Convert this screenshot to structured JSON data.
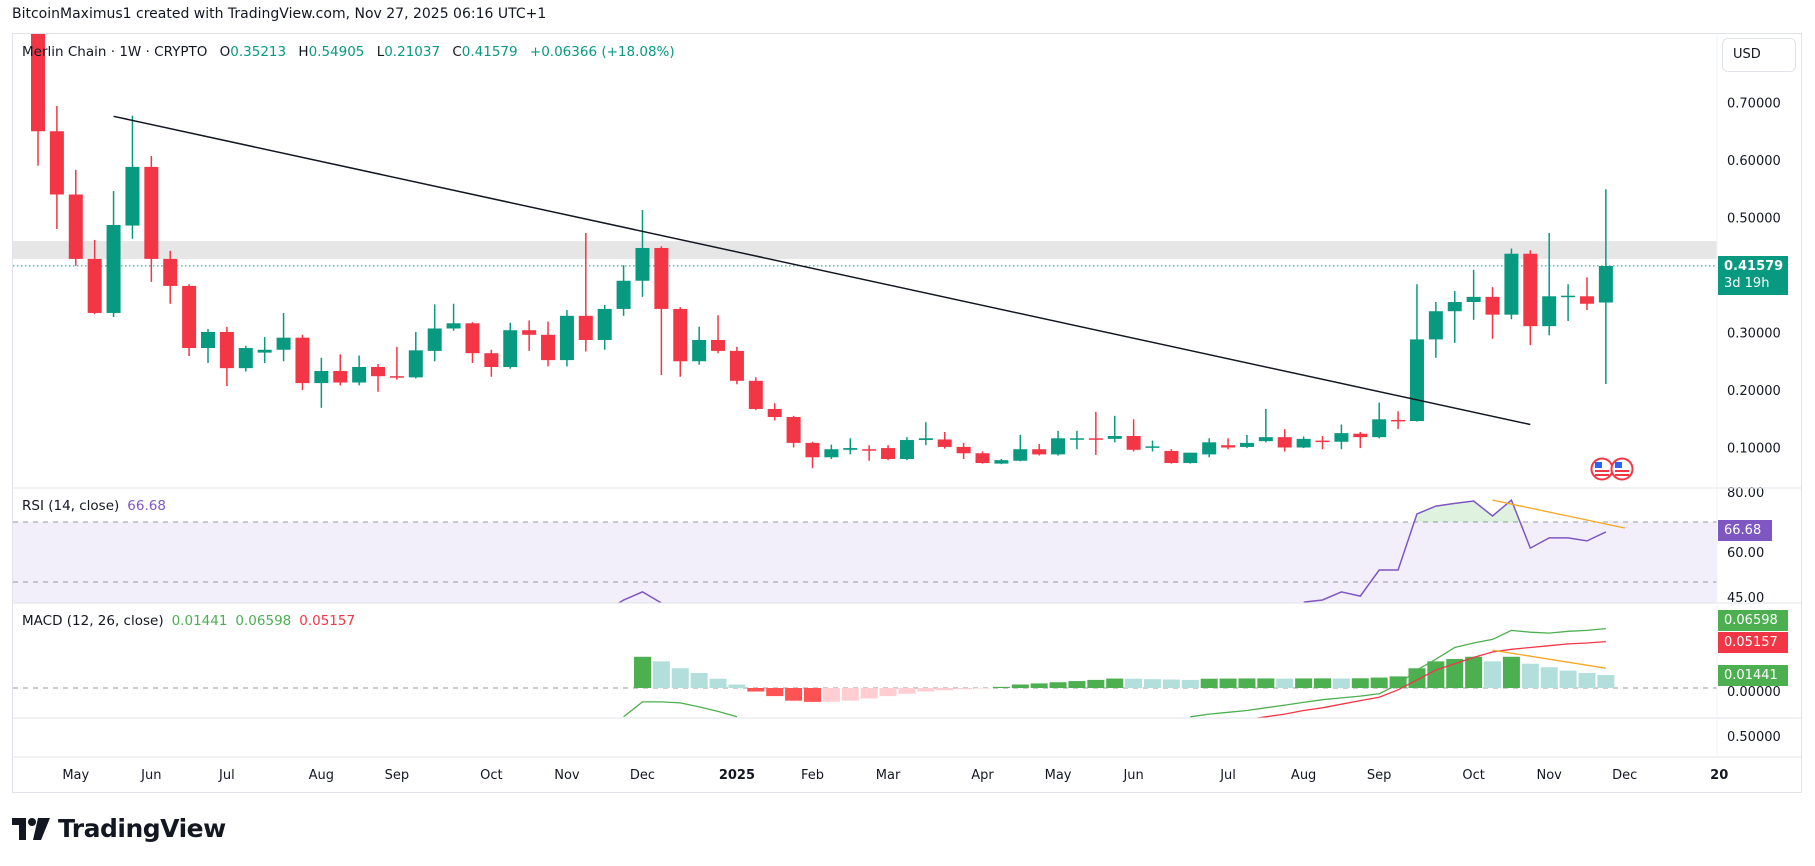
{
  "credit": "BitcoinMaximus1 created with TradingView.com, Nov 27, 2025 06:16 UTC+1",
  "symbol": {
    "name": "Merlin Chain",
    "interval": "1W",
    "exchange": "CRYPTO",
    "separator": "·"
  },
  "ohlc": {
    "o_label": "O",
    "o": "0.35213",
    "h_label": "H",
    "h": "0.54905",
    "l_label": "L",
    "l": "0.21037",
    "c_label": "C",
    "c": "0.41579",
    "change": "+0.06366 (+18.08%)"
  },
  "currency": "USD",
  "last_price": {
    "value": "0.41579",
    "countdown": "3d 19h"
  },
  "rsi": {
    "title": "RSI (14, close)",
    "value": "66.68"
  },
  "macd": {
    "title": "MACD (12, 26, close)",
    "hist": "0.01441",
    "macd": "0.06598",
    "signal": "0.05157"
  },
  "lower_pane_label": "0.50000",
  "brand": "TradingView",
  "colors": {
    "up": "#089981",
    "down": "#f23645",
    "rsi": "#7e57c2",
    "macd_line": "#4caf50",
    "signal_line": "#f23645",
    "hist_up_strong": "#4caf50",
    "hist_up_weak": "#b2dfdb",
    "hist_down_strong": "#ff5252",
    "hist_down_weak": "#ffcdd2",
    "trendline": "#131722",
    "divergence": "#f5a623",
    "resistance_zone": "#e6e6e6"
  },
  "chart_data": {
    "type": "candlestick",
    "price_axis": {
      "ticks": [
        "0.70000",
        "0.60000",
        "0.50000",
        "0.30000",
        "0.20000",
        "0.10000"
      ],
      "values": [
        0.7,
        0.6,
        0.5,
        0.3,
        0.2,
        0.1
      ]
    },
    "resistance_zone": [
      0.428,
      0.459
    ],
    "trendline": {
      "from": [
        "2024-05-20",
        0.676
      ],
      "to": [
        "2025-10-27",
        0.14
      ]
    },
    "x_ticks": [
      {
        "label": "May",
        "month": "2024-05"
      },
      {
        "label": "Jun",
        "month": "2024-06"
      },
      {
        "label": "Jul",
        "month": "2024-07"
      },
      {
        "label": "Aug",
        "month": "2024-08"
      },
      {
        "label": "Sep",
        "month": "2024-09"
      },
      {
        "label": "Oct",
        "month": "2024-10"
      },
      {
        "label": "Nov",
        "month": "2024-11"
      },
      {
        "label": "Dec",
        "month": "2024-12"
      },
      {
        "label": "2025",
        "month": "2025-01",
        "bold": true
      },
      {
        "label": "Feb",
        "month": "2025-02"
      },
      {
        "label": "Mar",
        "month": "2025-03"
      },
      {
        "label": "Apr",
        "month": "2025-04"
      },
      {
        "label": "May",
        "month": "2025-05"
      },
      {
        "label": "Jun",
        "month": "2025-06"
      },
      {
        "label": "Jul",
        "month": "2025-07"
      },
      {
        "label": "Aug",
        "month": "2025-08"
      },
      {
        "label": "Sep",
        "month": "2025-09"
      },
      {
        "label": "Oct",
        "month": "2025-10"
      },
      {
        "label": "Nov",
        "month": "2025-11"
      },
      {
        "label": "Dec",
        "month": "2025-12"
      },
      {
        "label": "20",
        "month": "2026-01",
        "bold": true
      }
    ],
    "candles_columns": [
      "date",
      "open",
      "high",
      "low",
      "close"
    ],
    "candles": [
      [
        "2024-04-22",
        0.84,
        0.86,
        0.59,
        0.65
      ],
      [
        "2024-04-29",
        0.65,
        0.694,
        0.48,
        0.54
      ],
      [
        "2024-05-06",
        0.54,
        0.583,
        0.416,
        0.428
      ],
      [
        "2024-05-13",
        0.428,
        0.461,
        0.332,
        0.334
      ],
      [
        "2024-05-20",
        0.334,
        0.546,
        0.327,
        0.487
      ],
      [
        "2024-05-27",
        0.486,
        0.677,
        0.463,
        0.588
      ],
      [
        "2024-06-03",
        0.588,
        0.607,
        0.388,
        0.428
      ],
      [
        "2024-06-10",
        0.428,
        0.442,
        0.35,
        0.381
      ],
      [
        "2024-06-17",
        0.381,
        0.384,
        0.259,
        0.273
      ],
      [
        "2024-06-24",
        0.273,
        0.306,
        0.247,
        0.301
      ],
      [
        "2024-07-01",
        0.301,
        0.31,
        0.207,
        0.238
      ],
      [
        "2024-07-08",
        0.238,
        0.277,
        0.232,
        0.273
      ],
      [
        "2024-07-15",
        0.265,
        0.292,
        0.247,
        0.27
      ],
      [
        "2024-07-22",
        0.27,
        0.334,
        0.25,
        0.291
      ],
      [
        "2024-07-29",
        0.291,
        0.296,
        0.2,
        0.212
      ],
      [
        "2024-08-05",
        0.212,
        0.256,
        0.169,
        0.233
      ],
      [
        "2024-08-12",
        0.233,
        0.262,
        0.208,
        0.213
      ],
      [
        "2024-08-19",
        0.213,
        0.26,
        0.208,
        0.24
      ],
      [
        "2024-08-26",
        0.24,
        0.245,
        0.197,
        0.224
      ],
      [
        "2024-09-02",
        0.224,
        0.275,
        0.218,
        0.222
      ],
      [
        "2024-09-09",
        0.222,
        0.301,
        0.22,
        0.269
      ],
      [
        "2024-09-16",
        0.268,
        0.349,
        0.25,
        0.307
      ],
      [
        "2024-09-23",
        0.307,
        0.35,
        0.303,
        0.316
      ],
      [
        "2024-09-30",
        0.316,
        0.318,
        0.247,
        0.264
      ],
      [
        "2024-10-07",
        0.264,
        0.27,
        0.223,
        0.24
      ],
      [
        "2024-10-14",
        0.24,
        0.317,
        0.237,
        0.304
      ],
      [
        "2024-10-21",
        0.304,
        0.321,
        0.268,
        0.296
      ],
      [
        "2024-10-28",
        0.296,
        0.319,
        0.241,
        0.252
      ],
      [
        "2024-11-04",
        0.252,
        0.339,
        0.241,
        0.329
      ],
      [
        "2024-11-11",
        0.329,
        0.473,
        0.267,
        0.287
      ],
      [
        "2024-11-18",
        0.287,
        0.348,
        0.27,
        0.341
      ],
      [
        "2024-11-25",
        0.341,
        0.417,
        0.329,
        0.39
      ],
      [
        "2024-12-02",
        0.39,
        0.513,
        0.362,
        0.447
      ],
      [
        "2024-12-09",
        0.447,
        0.45,
        0.226,
        0.341
      ],
      [
        "2024-12-16",
        0.341,
        0.344,
        0.223,
        0.25
      ],
      [
        "2024-12-23",
        0.25,
        0.31,
        0.244,
        0.287
      ],
      [
        "2024-12-30",
        0.287,
        0.33,
        0.264,
        0.268
      ],
      [
        "2025-01-06",
        0.268,
        0.275,
        0.21,
        0.216
      ],
      [
        "2025-01-13",
        0.216,
        0.222,
        0.165,
        0.167
      ],
      [
        "2025-01-20",
        0.167,
        0.177,
        0.147,
        0.153
      ],
      [
        "2025-01-27",
        0.153,
        0.155,
        0.1,
        0.108
      ],
      [
        "2025-02-03",
        0.108,
        0.11,
        0.064,
        0.083
      ],
      [
        "2025-02-10",
        0.083,
        0.105,
        0.08,
        0.097
      ],
      [
        "2025-02-17",
        0.096,
        0.116,
        0.088,
        0.099
      ],
      [
        "2025-02-24",
        0.097,
        0.104,
        0.077,
        0.095
      ],
      [
        "2025-03-03",
        0.099,
        0.104,
        0.078,
        0.08
      ],
      [
        "2025-03-10",
        0.08,
        0.118,
        0.078,
        0.113
      ],
      [
        "2025-03-17",
        0.113,
        0.144,
        0.104,
        0.116
      ],
      [
        "2025-03-24",
        0.114,
        0.127,
        0.098,
        0.101
      ],
      [
        "2025-03-31",
        0.101,
        0.108,
        0.08,
        0.09
      ],
      [
        "2025-04-07",
        0.09,
        0.093,
        0.072,
        0.073
      ],
      [
        "2025-04-14",
        0.072,
        0.08,
        0.071,
        0.078
      ],
      [
        "2025-04-21",
        0.077,
        0.122,
        0.076,
        0.097
      ],
      [
        "2025-04-28",
        0.097,
        0.106,
        0.086,
        0.088
      ],
      [
        "2025-05-05",
        0.088,
        0.129,
        0.086,
        0.116
      ],
      [
        "2025-05-12",
        0.114,
        0.129,
        0.097,
        0.116
      ],
      [
        "2025-05-19",
        0.116,
        0.162,
        0.087,
        0.115
      ],
      [
        "2025-05-26",
        0.115,
        0.155,
        0.109,
        0.12
      ],
      [
        "2025-06-02",
        0.12,
        0.149,
        0.093,
        0.096
      ],
      [
        "2025-06-09",
        0.1,
        0.112,
        0.093,
        0.102
      ],
      [
        "2025-06-16",
        0.094,
        0.097,
        0.072,
        0.073
      ],
      [
        "2025-06-23",
        0.073,
        0.091,
        0.072,
        0.091
      ],
      [
        "2025-06-30",
        0.088,
        0.116,
        0.083,
        0.109
      ],
      [
        "2025-07-07",
        0.104,
        0.116,
        0.097,
        0.1
      ],
      [
        "2025-07-14",
        0.101,
        0.122,
        0.099,
        0.108
      ],
      [
        "2025-07-21",
        0.111,
        0.167,
        0.109,
        0.118
      ],
      [
        "2025-07-28",
        0.118,
        0.132,
        0.093,
        0.1
      ],
      [
        "2025-08-04",
        0.1,
        0.119,
        0.099,
        0.115
      ],
      [
        "2025-08-11",
        0.112,
        0.12,
        0.097,
        0.11
      ],
      [
        "2025-08-18",
        0.11,
        0.14,
        0.097,
        0.125
      ],
      [
        "2025-08-25",
        0.124,
        0.127,
        0.099,
        0.118
      ],
      [
        "2025-09-01",
        0.118,
        0.178,
        0.116,
        0.149
      ],
      [
        "2025-09-08",
        0.148,
        0.163,
        0.132,
        0.146
      ],
      [
        "2025-09-15",
        0.146,
        0.384,
        0.145,
        0.288
      ],
      [
        "2025-09-22",
        0.288,
        0.353,
        0.256,
        0.337
      ],
      [
        "2025-09-29",
        0.337,
        0.372,
        0.282,
        0.353
      ],
      [
        "2025-10-06",
        0.353,
        0.409,
        0.322,
        0.362
      ],
      [
        "2025-10-13",
        0.362,
        0.379,
        0.289,
        0.331
      ],
      [
        "2025-10-20",
        0.331,
        0.446,
        0.323,
        0.437
      ],
      [
        "2025-10-27",
        0.437,
        0.443,
        0.278,
        0.311
      ],
      [
        "2025-11-03",
        0.311,
        0.473,
        0.295,
        0.363
      ],
      [
        "2025-11-10",
        0.362,
        0.384,
        0.32,
        0.364
      ],
      [
        "2025-11-17",
        0.363,
        0.396,
        0.339,
        0.35
      ],
      [
        "2025-11-24",
        0.35213,
        0.54905,
        0.21037,
        0.41579
      ]
    ],
    "rsi_axis": {
      "ticks": [
        "80.00",
        "60.00",
        "45.00"
      ],
      "values": [
        80,
        60,
        45
      ],
      "bands": [
        70,
        50
      ]
    },
    "rsi_values": [
      null,
      null,
      null,
      null,
      null,
      null,
      null,
      null,
      null,
      null,
      null,
      null,
      null,
      null,
      null,
      null,
      null,
      null,
      null,
      null,
      null,
      null,
      null,
      null,
      null,
      null,
      null,
      null,
      null,
      null,
      40,
      44,
      46.7,
      43,
      38,
      null,
      null,
      null,
      null,
      null,
      null,
      null,
      null,
      null,
      null,
      null,
      null,
      null,
      null,
      null,
      null,
      null,
      null,
      null,
      null,
      null,
      null,
      null,
      null,
      null,
      null,
      null,
      null,
      null,
      null,
      null,
      null,
      43.3,
      44,
      46.7,
      45.3,
      54,
      54,
      72.7,
      75.3,
      76.2,
      77,
      72,
      77.3,
      61.3,
      64.7,
      64.7,
      63.7,
      66.68
    ],
    "rsi_divergence": {
      "from": [
        "2025-10-13",
        77.3
      ],
      "to": [
        "2025-12-01",
        68
      ]
    },
    "macd_axis": {
      "ticks": [
        "0.00000"
      ],
      "values": [
        0
      ]
    },
    "macd_hist": [
      null,
      null,
      null,
      null,
      null,
      null,
      null,
      null,
      null,
      null,
      null,
      null,
      null,
      null,
      null,
      null,
      null,
      null,
      null,
      null,
      null,
      null,
      null,
      null,
      null,
      null,
      null,
      null,
      null,
      null,
      null,
      null,
      0.0347,
      0.0296,
      0.0219,
      0.0167,
      0.0103,
      0.0039,
      -0.0039,
      -0.009,
      -0.0141,
      -0.0154,
      -0.0152,
      -0.0141,
      -0.0116,
      -0.009,
      -0.0064,
      -0.0039,
      -0.0026,
      -0.0013,
      -0.0005,
      0.0013,
      0.0039,
      0.0051,
      0.0064,
      0.0077,
      0.009,
      0.0105,
      0.0103,
      0.0098,
      0.0094,
      0.009,
      0.0103,
      0.0105,
      0.0106,
      0.0106,
      0.0104,
      0.0106,
      0.0107,
      0.0106,
      0.0108,
      0.0116,
      0.0129,
      0.0219,
      0.0296,
      0.0322,
      0.0347,
      0.0296,
      0.0347,
      0.027,
      0.0231,
      0.0193,
      0.0167,
      0.01441
    ],
    "macd_line": [
      null,
      null,
      null,
      null,
      null,
      null,
      null,
      null,
      null,
      null,
      null,
      null,
      null,
      null,
      null,
      null,
      null,
      null,
      null,
      null,
      null,
      null,
      null,
      null,
      null,
      null,
      null,
      null,
      null,
      null,
      null,
      -0.032,
      -0.0154,
      -0.0154,
      -0.0165,
      -0.021,
      -0.026,
      -0.032,
      null,
      null,
      null,
      null,
      null,
      null,
      null,
      null,
      null,
      null,
      null,
      null,
      null,
      null,
      null,
      null,
      null,
      null,
      null,
      null,
      null,
      null,
      null,
      -0.032,
      -0.029,
      -0.027,
      -0.025,
      -0.022,
      -0.019,
      -0.016,
      -0.013,
      -0.011,
      -0.009,
      -0.0064,
      0.004,
      0.02,
      0.032,
      0.045,
      0.05,
      0.054,
      0.064,
      0.062,
      0.061,
      0.063,
      0.064,
      0.06598
    ],
    "signal_line": [
      null,
      null,
      null,
      null,
      null,
      null,
      null,
      null,
      null,
      null,
      null,
      null,
      null,
      null,
      null,
      null,
      null,
      null,
      null,
      null,
      null,
      null,
      null,
      null,
      null,
      null,
      null,
      null,
      null,
      null,
      null,
      null,
      null,
      null,
      null,
      null,
      null,
      null,
      null,
      null,
      null,
      null,
      null,
      null,
      null,
      null,
      null,
      null,
      null,
      null,
      null,
      null,
      null,
      null,
      null,
      null,
      null,
      null,
      null,
      null,
      null,
      null,
      null,
      null,
      -0.035,
      -0.032,
      -0.029,
      -0.025,
      -0.022,
      -0.018,
      -0.014,
      -0.0103,
      -0.002,
      0.009,
      0.02,
      0.027,
      0.034,
      0.04,
      0.043,
      0.045,
      0.047,
      0.049,
      0.05,
      0.05157
    ],
    "macd_divergence": {
      "from": [
        "2025-10-13",
        0.042
      ],
      "to": [
        "2025-11-24",
        0.022
      ]
    }
  }
}
